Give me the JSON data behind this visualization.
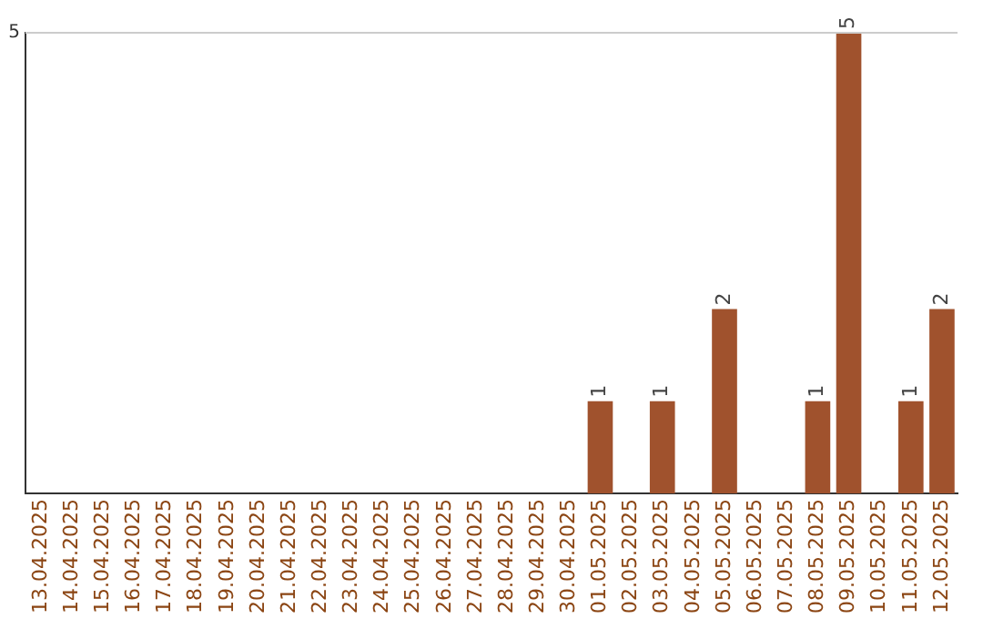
{
  "chart_data": {
    "type": "bar",
    "ylim": [
      0,
      5
    ],
    "categories": [
      "13.04.2025",
      "14.04.2025",
      "15.04.2025",
      "16.04.2025",
      "17.04.2025",
      "18.04.2025",
      "19.04.2025",
      "20.04.2025",
      "21.04.2025",
      "22.04.2025",
      "23.04.2025",
      "24.04.2025",
      "25.04.2025",
      "26.04.2025",
      "27.04.2025",
      "28.04.2025",
      "29.04.2025",
      "30.04.2025",
      "01.05.2025",
      "02.05.2025",
      "03.05.2025",
      "04.05.2025",
      "05.05.2025",
      "06.05.2025",
      "07.05.2025",
      "08.05.2025",
      "09.05.2025",
      "10.05.2025",
      "11.05.2025",
      "12.05.2025"
    ],
    "values": [
      null,
      null,
      null,
      null,
      null,
      null,
      null,
      null,
      null,
      null,
      null,
      null,
      null,
      null,
      null,
      null,
      null,
      null,
      1,
      null,
      1,
      null,
      2,
      null,
      null,
      1,
      5,
      null,
      1,
      2
    ],
    "value_labels": [
      null,
      null,
      null,
      null,
      null,
      null,
      null,
      null,
      null,
      null,
      null,
      null,
      null,
      null,
      null,
      null,
      null,
      null,
      "1",
      null,
      "1",
      null,
      "2",
      null,
      null,
      "1",
      "5",
      null,
      "1",
      "2"
    ],
    "color": "#a0522d",
    "ref_lines": [
      {
        "axis": "y",
        "value": 5,
        "label": "5",
        "color": "#cccccc"
      }
    ],
    "legend": false
  }
}
